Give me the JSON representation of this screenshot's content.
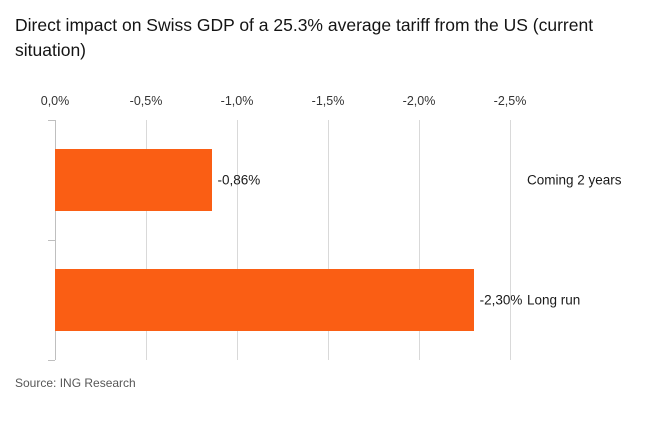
{
  "title": "Direct impact on Swiss GDP of a 25.3% average tariff from the US (current situation)",
  "source": "Source: ING Research",
  "chart_data": {
    "type": "bar",
    "orientation": "horizontal",
    "title": "Direct impact on Swiss GDP of a 25.3% average tariff from the US (current situation)",
    "categories": [
      "Coming 2 years",
      "Long run"
    ],
    "values": [
      -0.86,
      -2.3
    ],
    "value_labels": [
      "-0,86%",
      "-2,30%"
    ],
    "x_ticks": [
      "0,0%",
      "-0,5%",
      "-1,0%",
      "-1,5%",
      "-2,0%",
      "-2,5%"
    ],
    "x_tick_values": [
      0,
      -0.5,
      -1.0,
      -1.5,
      -2.0,
      -2.5
    ],
    "xlim": [
      0,
      -2.5
    ],
    "axis_position": "top",
    "grid": true,
    "legend": "none",
    "bar_color": "#FA5E14",
    "source_note": "Source: ING Research"
  }
}
